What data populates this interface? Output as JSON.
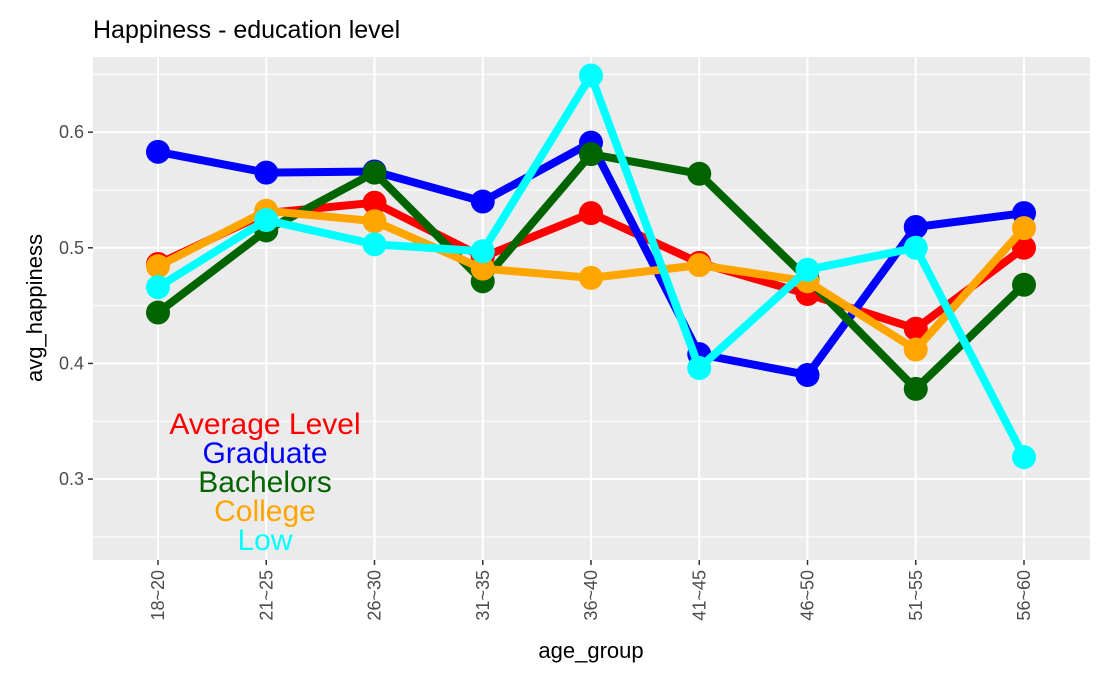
{
  "chart_data": {
    "type": "line",
    "title": "Happiness - education level",
    "xlabel": "age_group",
    "ylabel": "avg_happiness",
    "categories": [
      "18~20",
      "21~25",
      "26~30",
      "31~35",
      "36~40",
      "41~45",
      "46~50",
      "51~55",
      "56~60"
    ],
    "yticks": [
      "0.3",
      "0.4",
      "0.5",
      "0.6"
    ],
    "ylim": [
      0.23,
      0.665
    ],
    "grid": true,
    "legend_position": "bottom-left",
    "series": [
      {
        "name": "Average Level",
        "color": "#ff0000",
        "values": [
          0.486,
          0.53,
          0.539,
          0.492,
          0.53,
          0.487,
          0.46,
          0.43,
          0.5
        ]
      },
      {
        "name": "Graduate",
        "color": "#0000ff",
        "values": [
          0.583,
          0.565,
          0.566,
          0.54,
          0.591,
          0.408,
          0.39,
          0.518,
          0.53
        ]
      },
      {
        "name": "Bachelors",
        "color": "#006400",
        "values": [
          0.444,
          0.515,
          0.565,
          0.471,
          0.581,
          0.564,
          0.473,
          0.378,
          0.468
        ]
      },
      {
        "name": "College",
        "color": "#ffa500",
        "values": [
          0.484,
          0.532,
          0.523,
          0.482,
          0.474,
          0.485,
          0.471,
          0.412,
          0.517
        ]
      },
      {
        "name": "Low",
        "color": "#00ffff",
        "values": [
          0.466,
          0.524,
          0.503,
          0.497,
          0.649,
          0.396,
          0.481,
          0.5,
          0.319
        ]
      }
    ]
  }
}
